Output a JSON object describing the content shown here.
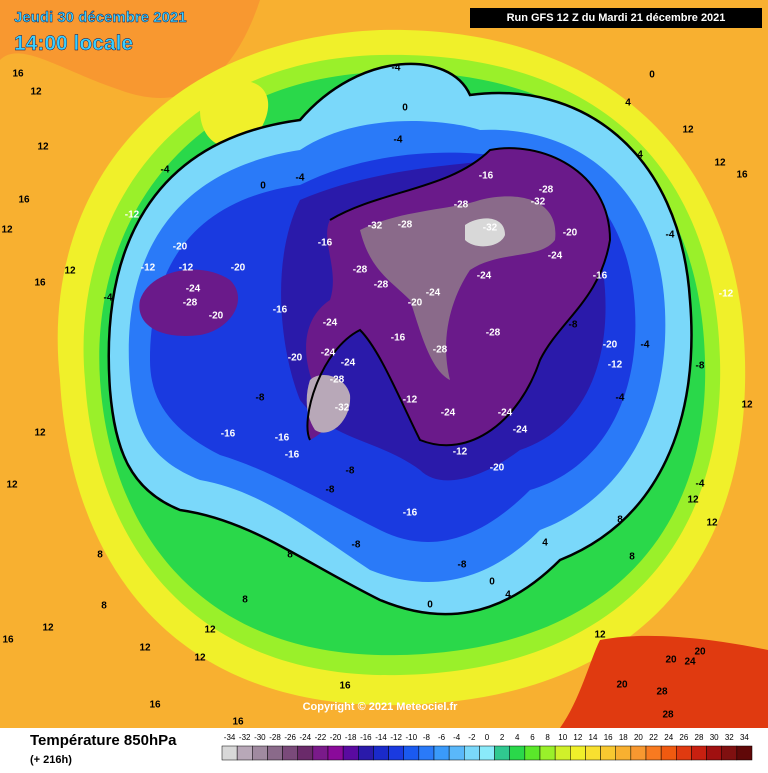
{
  "header": {
    "date_line": "Jeudi 30 décembre 2021",
    "time_line": "14:00 locale",
    "run_line": "Run GFS 12 Z du Mardi 21 décembre 2021"
  },
  "copyright": "Copyright © 2021 Meteociel.fr",
  "legend": {
    "title": "Température 850hPa",
    "subtitle": "(+ 216h)",
    "scale": [
      -34,
      -32,
      -30,
      -28,
      -26,
      -24,
      -22,
      -20,
      -18,
      -16,
      -14,
      -12,
      -10,
      -8,
      -6,
      -4,
      -2,
      0,
      2,
      4,
      6,
      8,
      10,
      12,
      14,
      16,
      18,
      20,
      22,
      24,
      26,
      28,
      30,
      32,
      34
    ],
    "colors": [
      "#d8d8d8",
      "#b8a8b8",
      "#a08aa0",
      "#8a6a8a",
      "#7a4a7a",
      "#6a2a6a",
      "#7a1a8a",
      "#8a0a9a",
      "#5a0aa0",
      "#2a1aaa",
      "#1a2aca",
      "#1a3ae0",
      "#1a5af0",
      "#2a7af8",
      "#3a9afa",
      "#5ab8fa",
      "#7ad8fa",
      "#8aeafa",
      "#30c890",
      "#2ad84a",
      "#5ae82a",
      "#9af02a",
      "#d0f02a",
      "#f0f02a",
      "#f8e030",
      "#f8c830",
      "#f8b030",
      "#f89830",
      "#f87a20",
      "#f05a10",
      "#e03a10",
      "#c82010",
      "#a01010",
      "#801010",
      "#600808"
    ]
  },
  "contour_labels": [
    -4,
    0,
    -4,
    -16,
    -28,
    -32,
    -28,
    -20,
    -32,
    -32,
    -28,
    -16,
    -28,
    -28,
    -24,
    -24,
    -24,
    -20,
    -28,
    -28,
    -16,
    -24,
    -24,
    -24,
    -28,
    -32,
    -20,
    -16,
    -20,
    -28,
    -24,
    -12,
    -20,
    -20,
    -12,
    -4,
    -4,
    0,
    -12,
    -24,
    -24,
    -24,
    -20,
    -12,
    -8,
    -8,
    -16,
    -8,
    -8,
    0,
    0,
    -16,
    -8,
    -16,
    -16,
    -12,
    -4,
    12,
    16,
    12,
    12,
    12,
    16,
    16,
    0,
    4,
    4,
    -4,
    -16,
    -8,
    -20,
    -4,
    -12,
    -4,
    -8,
    -12,
    12,
    16,
    12,
    12,
    -4,
    12,
    12,
    8,
    8,
    20,
    24,
    20,
    12,
    16,
    12,
    12,
    12,
    8,
    8,
    8,
    8,
    16,
    16,
    16,
    4,
    4,
    12,
    20,
    28,
    28,
    12,
    12
  ]
}
